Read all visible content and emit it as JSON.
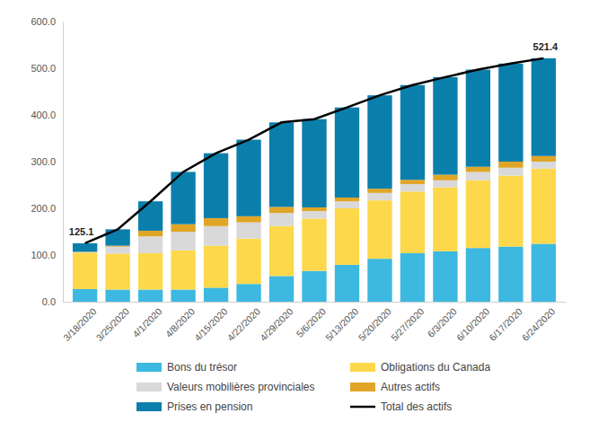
{
  "chart_data": {
    "type": "bar",
    "stacked": true,
    "legend": "bottom",
    "grid": false,
    "categories": [
      "3/18/2020",
      "3/25/2020",
      "4/1/2020",
      "4/8/2020",
      "4/15/2020",
      "4/22/2020",
      "4/29/2020",
      "5/6/2020",
      "5/13/2020",
      "5/20/2020",
      "5/27/2020",
      "6/3/2020",
      "6/10/2020",
      "6/17/2020",
      "6/24/2020"
    ],
    "series": [
      {
        "name": "Bons du trésor",
        "type": "bar",
        "color": "#3db8e0",
        "values": [
          27,
          26,
          26,
          26,
          30,
          38,
          55,
          66,
          79,
          92,
          104,
          108,
          115,
          118,
          124
        ]
      },
      {
        "name": "Obligations du Canada",
        "type": "bar",
        "color": "#fdd84a",
        "values": [
          78,
          77,
          78,
          84,
          90,
          97,
          107,
          112,
          121,
          125,
          132,
          137,
          145,
          152,
          161
        ]
      },
      {
        "name": "Valeurs mobilières provinciales",
        "type": "bar",
        "color": "#d9d9d9",
        "values": [
          1,
          15,
          36,
          40,
          42,
          35,
          28,
          16,
          15,
          16,
          16,
          15,
          18,
          17,
          15
        ]
      },
      {
        "name": "Autres actifs",
        "type": "bar",
        "color": "#e0a526",
        "values": [
          1,
          2,
          12,
          16,
          17,
          13,
          13,
          8,
          8,
          9,
          9,
          12,
          11,
          13,
          12
        ]
      },
      {
        "name": "Prises en pension",
        "type": "bar",
        "color": "#0b7fab",
        "values": [
          18.1,
          35,
          63,
          112,
          139,
          164,
          181,
          189,
          193,
          200,
          203,
          209,
          208,
          210,
          209.4
        ]
      },
      {
        "name": "Total des actifs",
        "type": "line",
        "color": "#000000",
        "values": [
          125.1,
          155,
          215,
          278,
          318,
          347,
          384,
          391,
          416,
          442,
          464,
          481,
          497,
          510,
          521.4
        ]
      }
    ],
    "ylim": [
      0,
      600
    ],
    "yticks": [
      {
        "value": 0,
        "label": "0.0"
      },
      {
        "value": 100,
        "label": "100.0"
      },
      {
        "value": 200,
        "label": "200.0"
      },
      {
        "value": 300,
        "label": "300.0"
      },
      {
        "value": 400,
        "label": "400.0"
      },
      {
        "value": 500,
        "label": "500.0"
      },
      {
        "value": 600,
        "label": "600.0"
      }
    ],
    "annotations": [
      {
        "text": "125.1",
        "x": "3/18/2020",
        "y": 125.1
      },
      {
        "text": "521.4",
        "x": "6/24/2020",
        "y": 521.4
      }
    ]
  }
}
